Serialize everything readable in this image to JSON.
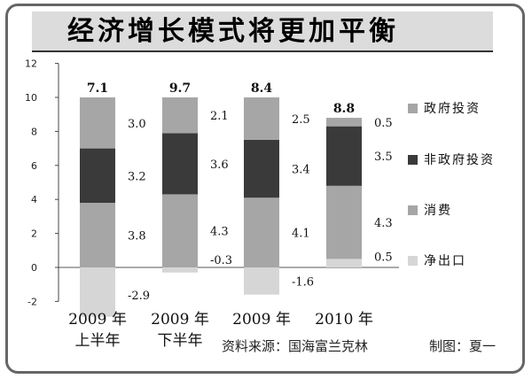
{
  "title": "经济增长模式将更加平衡",
  "source": "资料来源：国海富兰克林",
  "credit": "制图：夏一",
  "chart_data": {
    "type": "bar",
    "stacked": true,
    "categories": [
      [
        "2009 年",
        "上半年"
      ],
      [
        "2009 年",
        "下半年"
      ],
      [
        "2009 年",
        ""
      ],
      [
        "2010 年",
        ""
      ]
    ],
    "totals": [
      7.1,
      9.7,
      8.4,
      8.8
    ],
    "series": [
      {
        "name": "政府投资",
        "color": "#a6a6a6",
        "values": [
          3.0,
          2.1,
          2.5,
          0.5
        ]
      },
      {
        "name": "非政府投资",
        "color": "#3a3a3a",
        "values": [
          3.2,
          3.6,
          3.4,
          3.5
        ]
      },
      {
        "name": "消费",
        "color": "#a6a6a6",
        "values": [
          3.8,
          4.3,
          4.1,
          4.3
        ]
      },
      {
        "name": "净出口",
        "color": "#d6d6d6",
        "values": [
          -2.9,
          -0.3,
          -1.6,
          0.5
        ]
      }
    ],
    "y_ticks": [
      -2,
      0,
      2,
      4,
      6,
      8,
      10,
      12
    ],
    "ylim": [
      -2,
      12
    ],
    "xlabel": "",
    "ylabel": "",
    "legend_position": "right"
  }
}
